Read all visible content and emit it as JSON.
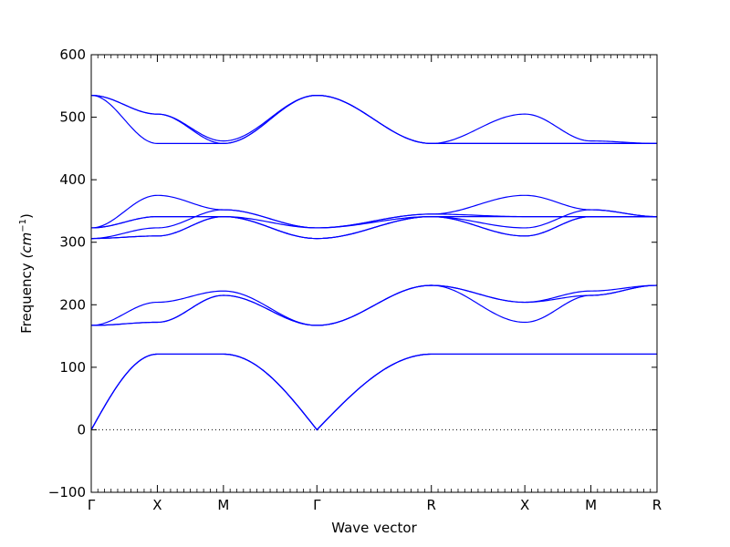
{
  "chart_data": {
    "type": "line",
    "xlabel": "Wave vector",
    "ylabel": "Frequency",
    "ylabel_unit": "(cm",
    "ylabel_exp": "−1",
    "ylabel_close": ")",
    "ylim": [
      -100,
      600
    ],
    "yticks": [
      "−100",
      "0",
      "100",
      "200",
      "300",
      "400",
      "500",
      "600"
    ],
    "ytick_values": [
      -100,
      0,
      100,
      200,
      300,
      400,
      500,
      600
    ],
    "x_path": [
      {
        "label": "Γ",
        "x": 0
      },
      {
        "label": "X",
        "x": 0.5
      },
      {
        "label": "M",
        "x": 1.0
      },
      {
        "label": "Γ",
        "x": 1.707
      },
      {
        "label": "R",
        "x": 2.573
      },
      {
        "label": "X",
        "x": 3.28
      },
      {
        "label": "M",
        "x": 3.78
      },
      {
        "label": "R",
        "x": 4.28
      }
    ],
    "zero_line": "dotted",
    "line_color": "#0000ff",
    "series": [
      {
        "x": [
          0,
          0.5,
          1.0,
          1.707,
          2.573,
          3.28,
          3.78,
          4.28
        ],
        "values": [
          0,
          121,
          121,
          0,
          121,
          121,
          121,
          121
        ]
      },
      {
        "x": [
          0,
          0.5,
          1.0,
          1.707,
          2.573,
          3.28,
          3.78,
          4.28
        ],
        "values": [
          0,
          121,
          121,
          0,
          121,
          121,
          121,
          121
        ]
      },
      {
        "x": [
          0,
          0.5,
          1.0,
          1.707,
          2.573,
          3.28,
          3.78,
          4.28
        ],
        "values": [
          0,
          121,
          121,
          0,
          121,
          121,
          121,
          121
        ]
      },
      {
        "x": [
          0,
          0.5,
          1.0,
          1.707,
          2.573,
          3.28,
          3.78,
          4.28
        ],
        "values": [
          167,
          172,
          215,
          167,
          231,
          172,
          215,
          231
        ]
      },
      {
        "x": [
          0,
          0.5,
          1.0,
          1.707,
          2.573,
          3.28,
          3.78,
          4.28
        ],
        "values": [
          167,
          172,
          215,
          167,
          231,
          204,
          222,
          231
        ]
      },
      {
        "x": [
          0,
          0.5,
          1.0,
          1.707,
          2.573,
          3.28,
          3.78,
          4.28
        ],
        "values": [
          167,
          204,
          222,
          167,
          231,
          204,
          215,
          231
        ]
      },
      {
        "x": [
          0,
          0.5,
          1.0,
          1.707,
          2.573,
          3.28,
          3.78,
          4.28
        ],
        "values": [
          306,
          310,
          341,
          306,
          341,
          310,
          341,
          341
        ]
      },
      {
        "x": [
          0,
          0.5,
          1.0,
          1.707,
          2.573,
          3.28,
          3.78,
          4.28
        ],
        "values": [
          306,
          310,
          341,
          306,
          341,
          323,
          352,
          341
        ]
      },
      {
        "x": [
          0,
          0.5,
          1.0,
          1.707,
          2.573,
          3.28,
          3.78,
          4.28
        ],
        "values": [
          306,
          323,
          352,
          323,
          341,
          341,
          341,
          341
        ]
      },
      {
        "x": [
          0,
          0.5,
          1.0,
          1.707,
          2.573,
          3.28,
          3.78,
          4.28
        ],
        "values": [
          323,
          341,
          341,
          323,
          345,
          375,
          352,
          341
        ]
      },
      {
        "x": [
          0,
          0.5,
          1.0,
          1.707,
          2.573,
          3.28,
          3.78,
          4.28
        ],
        "values": [
          323,
          375,
          352,
          323,
          345,
          341,
          341,
          341
        ]
      },
      {
        "x": [
          0,
          0.5,
          1.0,
          1.707,
          2.573,
          3.28,
          3.78,
          4.28
        ],
        "values": [
          323,
          341,
          341,
          306,
          341,
          310,
          341,
          341
        ]
      },
      {
        "x": [
          0,
          0.5,
          1.0,
          1.707,
          2.573,
          3.28,
          3.78,
          4.28
        ],
        "values": [
          535,
          458,
          458,
          535,
          458,
          458,
          458,
          458
        ]
      },
      {
        "x": [
          0,
          0.5,
          1.0,
          1.707,
          2.573,
          3.28,
          3.78,
          4.28
        ],
        "values": [
          535,
          505,
          462,
          535,
          458,
          505,
          462,
          458
        ]
      },
      {
        "x": [
          0,
          0.5,
          1.0,
          1.707,
          2.573,
          3.28,
          3.78,
          4.28
        ],
        "values": [
          535,
          505,
          458,
          535,
          458,
          458,
          458,
          458
        ]
      }
    ]
  }
}
